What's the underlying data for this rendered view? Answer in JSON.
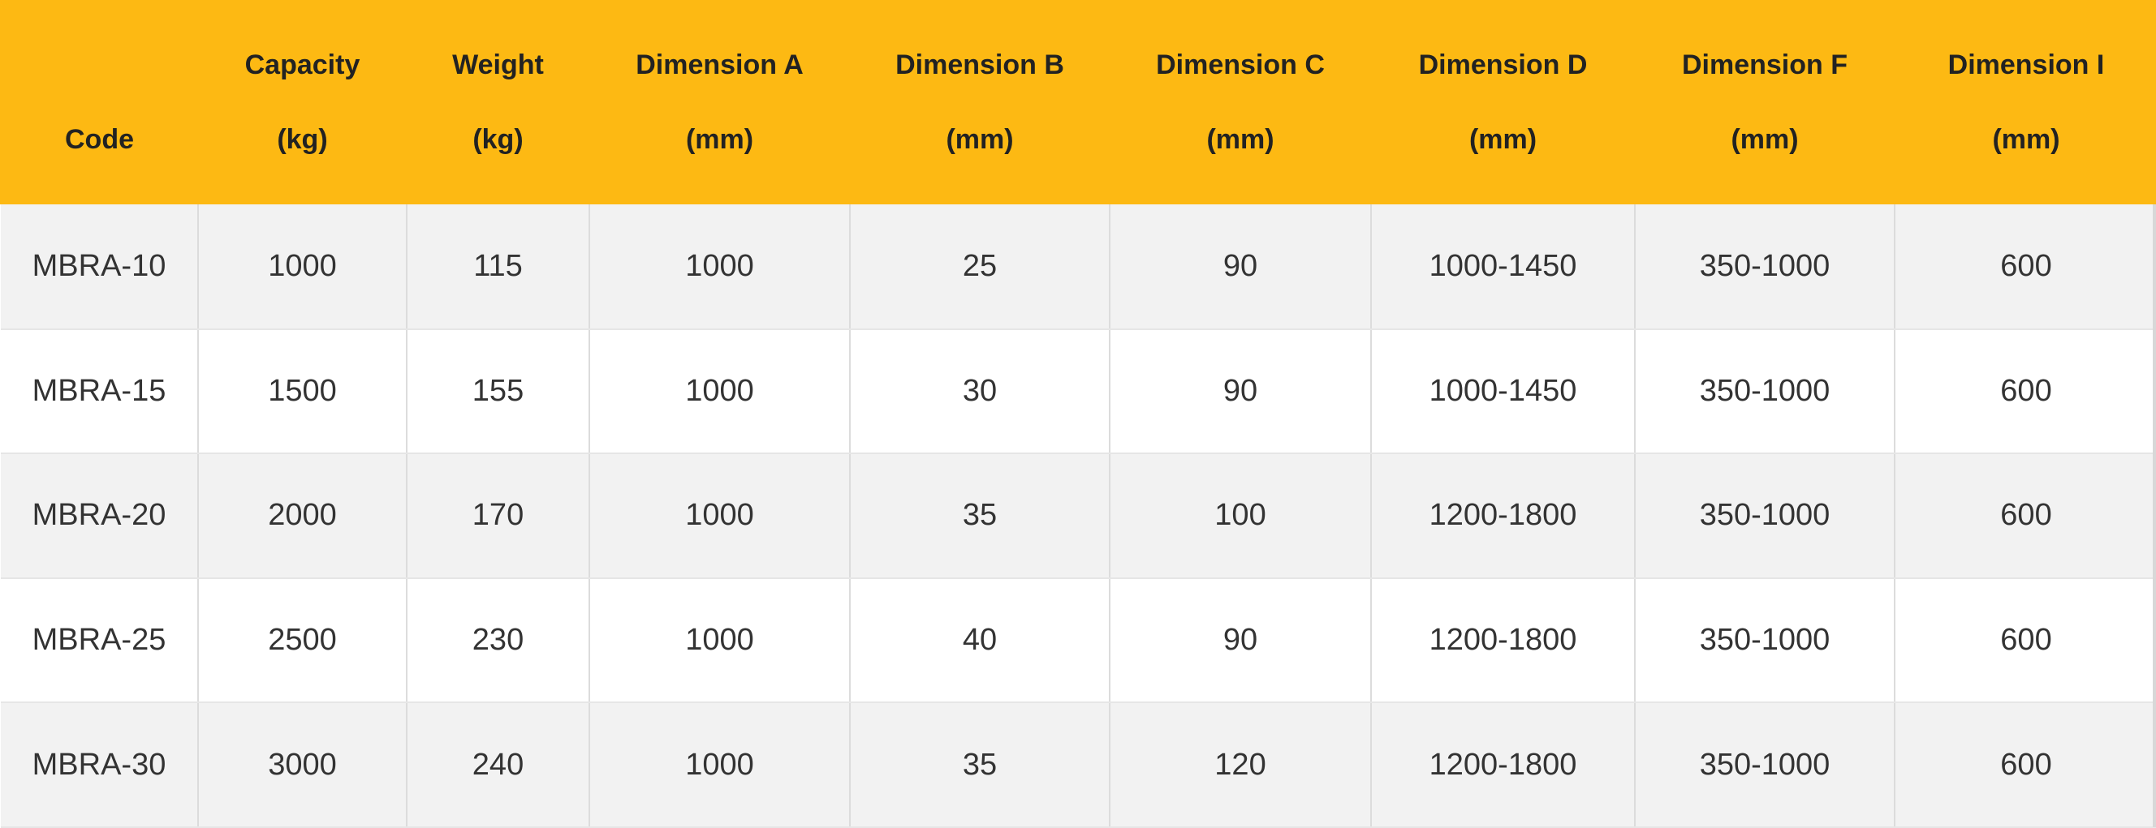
{
  "columns": [
    {
      "line1": "",
      "line2": "Code"
    },
    {
      "line1": "Capacity",
      "line2": "(kg)"
    },
    {
      "line1": "Weight",
      "line2": "(kg)"
    },
    {
      "line1": "Dimension A",
      "line2": "(mm)"
    },
    {
      "line1": "Dimension B",
      "line2": "(mm)"
    },
    {
      "line1": "Dimension C",
      "line2": "(mm)"
    },
    {
      "line1": "Dimension D",
      "line2": "(mm)"
    },
    {
      "line1": "Dimension F",
      "line2": "(mm)"
    },
    {
      "line1": "Dimension I",
      "line2": "(mm)"
    }
  ],
  "rows": [
    [
      "MBRA-10",
      "1000",
      "115",
      "1000",
      "25",
      "90",
      "1000-1450",
      "350-1000",
      "600"
    ],
    [
      "MBRA-15",
      "1500",
      "155",
      "1000",
      "30",
      "90",
      "1000-1450",
      "350-1000",
      "600"
    ],
    [
      "MBRA-20",
      "2000",
      "170",
      "1000",
      "35",
      "100",
      "1200-1800",
      "350-1000",
      "600"
    ],
    [
      "MBRA-25",
      "2500",
      "230",
      "1000",
      "40",
      "90",
      "1200-1800",
      "350-1000",
      "600"
    ],
    [
      "MBRA-30",
      "3000",
      "240",
      "1000",
      "35",
      "120",
      "1200-1800",
      "350-1000",
      "600"
    ]
  ],
  "colors": {
    "header_bg": "#fdb913",
    "row_alt_bg": "#f2f2f2",
    "row_bg": "#ffffff",
    "text": "#333333"
  }
}
